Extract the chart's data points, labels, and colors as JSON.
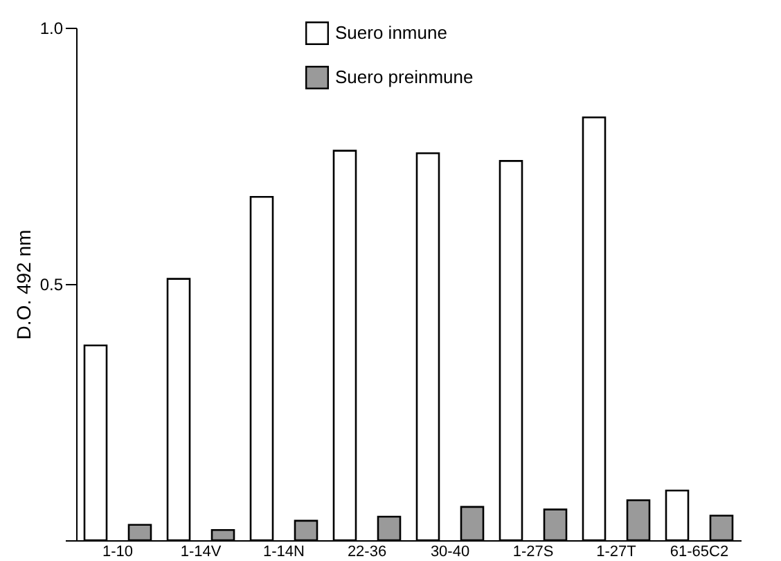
{
  "chart_data": {
    "type": "bar",
    "ylabel": "D.O. 492 nm",
    "categories": [
      "1-10",
      "1-14V",
      "1-14N",
      "22-36",
      "30-40",
      "1-27S",
      "1-27T",
      "61-65C2"
    ],
    "series": [
      {
        "name": "Suero inmune",
        "color": "#ffffff",
        "values": [
          0.38,
          0.51,
          0.67,
          0.76,
          0.755,
          0.74,
          0.825,
          0.097
        ]
      },
      {
        "name": "Suero preinmune",
        "color": "#9a9a9a",
        "values": [
          0.03,
          0.02,
          0.038,
          0.046,
          0.065,
          0.06,
          0.078,
          0.048
        ]
      }
    ],
    "ylim": [
      0,
      1
    ],
    "yticks": [
      {
        "value": 0,
        "label": null
      },
      0.5,
      {
        "value": 1,
        "label": "1.0"
      }
    ],
    "legend": "top left",
    "grid": false
  }
}
